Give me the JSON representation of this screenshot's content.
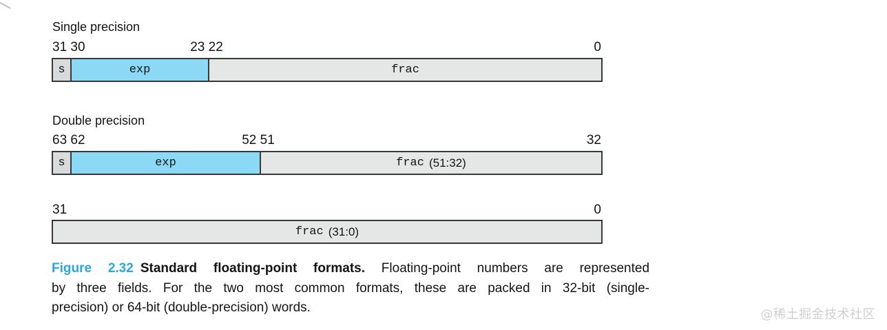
{
  "diagram": {
    "single": {
      "section_label": "Single precision",
      "bits_left": "31 30",
      "bits_mid": "23 22",
      "bits_right": "0",
      "field_s": "s",
      "field_exp": "exp",
      "field_frac": "frac"
    },
    "double": {
      "section_label": "Double precision",
      "bits_left": "63 62",
      "bits_mid": "52 51",
      "bits_right": "32",
      "field_s": "s",
      "field_exp": "exp",
      "field_frac_name": "frac",
      "field_frac_range": "(51:32)"
    },
    "double_low_word": {
      "bits_left": "31",
      "bits_right": "0",
      "field_frac_name": "frac",
      "field_frac_range": "(31:0)"
    }
  },
  "caption": {
    "figure_label": "Figure 2.32",
    "title": "Standard floating-point formats.",
    "line1_rest": "Floating-point numbers are represented",
    "line2": "by three fields. For the two most common formats, these are packed in 32-bit (single-",
    "line3": "precision) or 64-bit (double-precision) words."
  },
  "watermark": "@稀土掘金技术社区",
  "colors": {
    "exp_fill": "#8bd9f5",
    "sign_fill": "#d9dadb",
    "frac_fill": "#e5e6e6",
    "box_border": "#383838",
    "figure_label_blue": "#29a8dc",
    "watermark_gray": "#cfcfcf"
  }
}
